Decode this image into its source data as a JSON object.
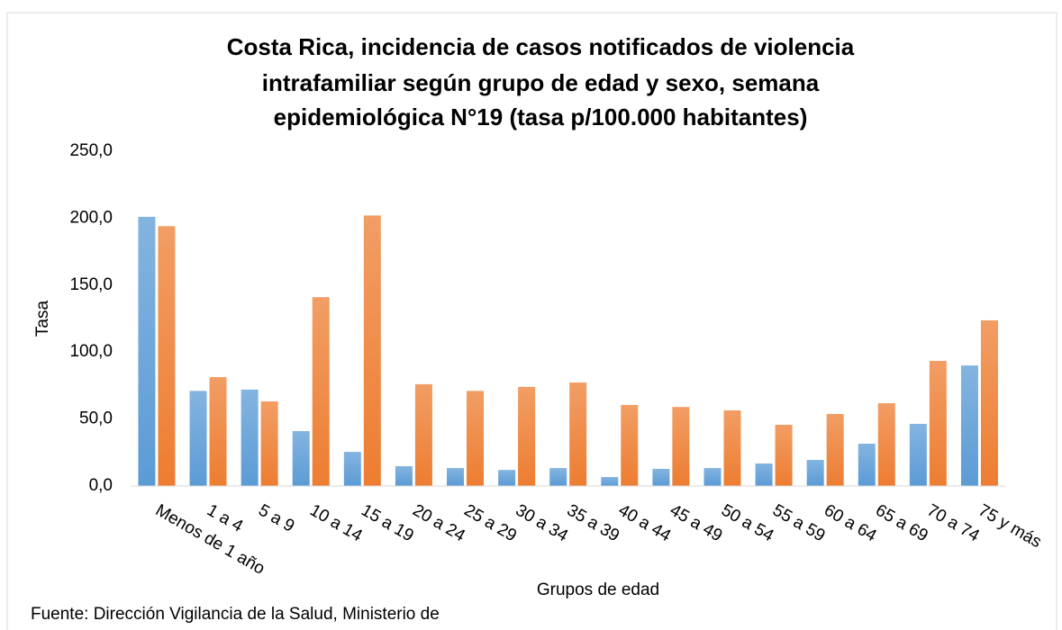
{
  "chart_data": {
    "type": "bar",
    "title": [
      "Costa Rica, incidencia de casos notificados de violencia",
      "intrafamiliar según grupo de edad y sexo, semana",
      "epidemiológica N°19 (tasa p/100.000 habitantes)"
    ],
    "x_label": "Grupos de edad",
    "y_label": "Tasa",
    "source": "Fuente: Dirección Vigilancia de la Salud, Ministerio de",
    "categories": [
      "Menos de 1 año",
      "1 a 4",
      "5 a 9",
      "10 a 14",
      "15 a 19",
      "20 a 24",
      "25 a 29",
      "30 a 34",
      "35 a 39",
      "40 a 44",
      "45 a 49",
      "50 a 54",
      "55 a 59",
      "60 a 64",
      "65 a 69",
      "70 a 74",
      "75 y más"
    ],
    "series": [
      {
        "color": "#5b9bd5",
        "values": [
          201,
          71,
          72,
          41,
          25.5,
          14.8,
          13.4,
          12,
          13.4,
          6.7,
          12.8,
          13.4,
          16.8,
          19.5,
          31.6,
          46.4,
          90
        ]
      },
      {
        "color": "#ed7d31",
        "values": [
          194,
          81.3,
          63.2,
          141,
          202,
          76,
          71,
          74,
          77.3,
          60.5,
          59,
          56.5,
          45.7,
          53.8,
          61.8,
          93.4,
          123.7
        ]
      }
    ],
    "ylim": [
      0,
      250
    ],
    "yticks": [
      {
        "value": 0,
        "label": "0,0"
      },
      {
        "value": 50,
        "label": "50,0"
      },
      {
        "value": 100,
        "label": "100,0"
      },
      {
        "value": 150,
        "label": "150,0"
      },
      {
        "value": 200,
        "label": "200,0"
      },
      {
        "value": 250,
        "label": "250,0"
      }
    ],
    "grid": false
  }
}
